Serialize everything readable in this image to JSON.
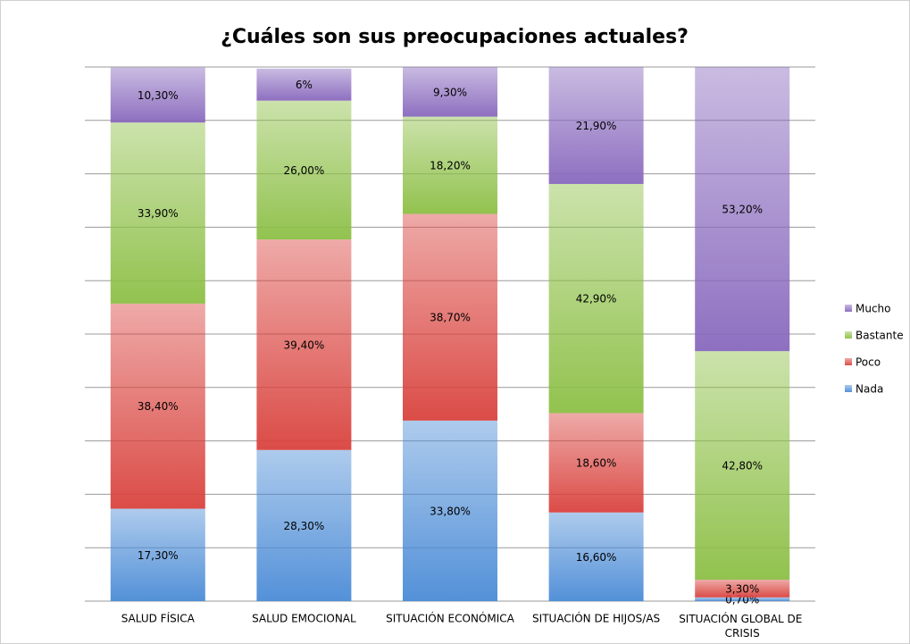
{
  "chart_data": {
    "type": "stacked_bar",
    "title": "¿Cuáles son sus preocupaciones actuales?",
    "categories": [
      "SALUD FÍSICA",
      "SALUD EMOCIONAL",
      "SITUACIÓN ECONÓMICA",
      "SITUACIÓN DE HIJOS/AS",
      "SITUACIÓN GLOBAL DE CRISIS"
    ],
    "series": [
      {
        "name": "Nada",
        "color": "#4a8bd6",
        "values": [
          17.3,
          28.3,
          33.8,
          16.6,
          0.7
        ],
        "value_labels": [
          "17,30%",
          "28,30%",
          "33,80%",
          "16,60%",
          "0,70%"
        ]
      },
      {
        "name": "Poco",
        "color": "#d9423d",
        "values": [
          38.4,
          39.4,
          38.7,
          18.6,
          3.3
        ],
        "value_labels": [
          "38,40%",
          "39,40%",
          "38,70%",
          "18,60%",
          "3,30%"
        ]
      },
      {
        "name": "Bastante",
        "color": "#8cbf45",
        "values": [
          33.9,
          26.0,
          18.2,
          42.9,
          42.8
        ],
        "value_labels": [
          "33,90%",
          "26,00%",
          "18,20%",
          "42,90%",
          "42,80%"
        ]
      },
      {
        "name": "Mucho",
        "color": "#8868bd",
        "values": [
          10.3,
          6,
          9.3,
          21.9,
          53.2
        ],
        "value_labels": [
          "10,30%",
          "6%",
          "9,30%",
          "21,90%",
          "53,20%"
        ]
      }
    ],
    "ylim": [
      0,
      100
    ],
    "yticks": [
      0,
      10,
      20,
      30,
      40,
      50,
      60,
      70,
      80,
      90,
      100
    ],
    "grid": true,
    "legend": "right"
  }
}
